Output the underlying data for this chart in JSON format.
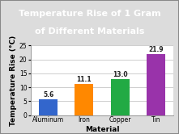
{
  "title_line1": "Temperature Rise of 1 Gram",
  "title_line2": "of Different Materials",
  "categories": [
    "Aluminum",
    "Iron",
    "Copper",
    "Tin"
  ],
  "values": [
    5.6,
    11.1,
    13.0,
    21.9
  ],
  "bar_colors": [
    "#3366cc",
    "#ff8800",
    "#22aa44",
    "#9933aa"
  ],
  "xlabel": "Material",
  "ylabel": "Temperature Rise (°C)",
  "ylim": [
    0,
    25
  ],
  "yticks": [
    0,
    5,
    10,
    15,
    20,
    25
  ],
  "title_bg_color": "#33aa44",
  "title_text_color": "#ffffff",
  "chart_bg_color": "#ffffff",
  "outer_bg_color": "#dcdcdc",
  "value_fontsize": 5.5,
  "axis_label_fontsize": 6.5,
  "tick_fontsize": 5.5,
  "title_fontsize": 8.0,
  "border_color": "#888888"
}
